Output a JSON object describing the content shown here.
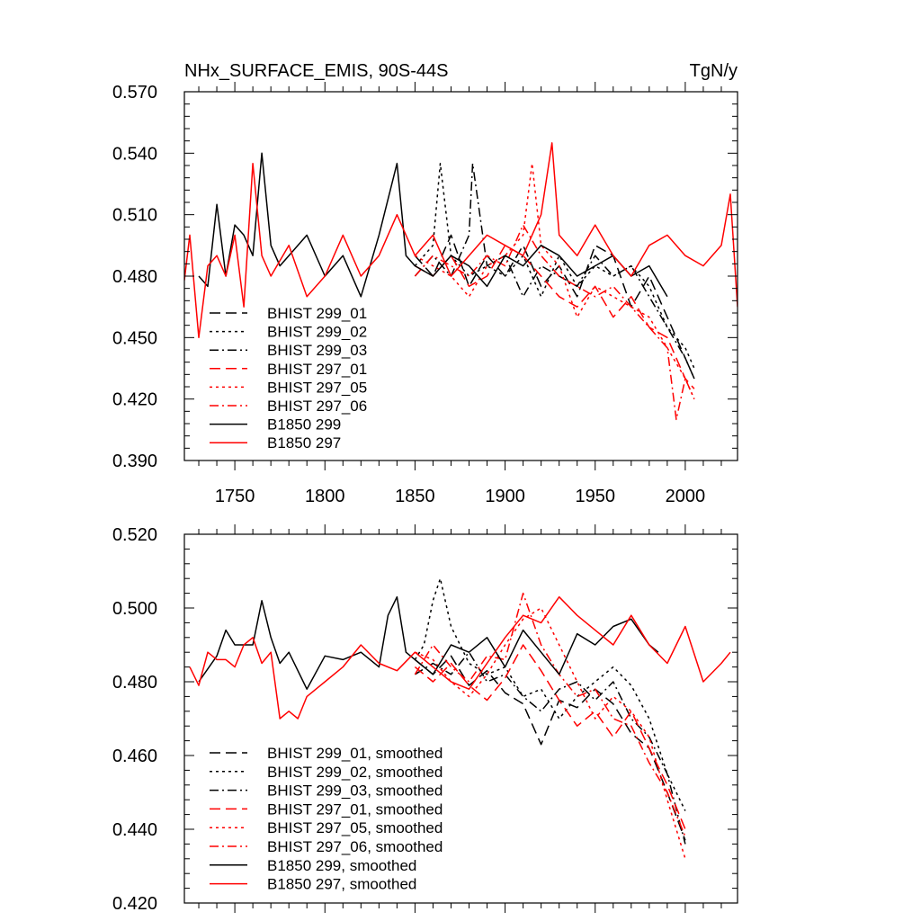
{
  "chart_data": [
    {
      "type": "line",
      "title": "NHx_SURFACE_EMIS, 90S-44S",
      "units": "TgN/y",
      "xlim": [
        1722,
        2029
      ],
      "ylim": [
        0.39,
        0.57
      ],
      "yticks": [
        "0.390",
        "0.420",
        "0.450",
        "0.480",
        "0.510",
        "0.540",
        "0.570"
      ],
      "xticks": [
        "1750",
        "1800",
        "1850",
        "1900",
        "1950",
        "2000"
      ],
      "grid": false,
      "legend_position": "bottom-left",
      "series": [
        {
          "name": "BHIST 299_01",
          "color": "#000000",
          "dash": "dashed",
          "x": [
            1850,
            1860,
            1870,
            1880,
            1890,
            1900,
            1910,
            1920,
            1930,
            1940,
            1950,
            1960,
            1970,
            1980,
            1990,
            2000,
            2005
          ],
          "y": [
            0.49,
            0.48,
            0.5,
            0.475,
            0.49,
            0.48,
            0.495,
            0.475,
            0.485,
            0.47,
            0.495,
            0.49,
            0.465,
            0.48,
            0.46,
            0.44,
            0.43
          ]
        },
        {
          "name": "BHIST 299_02",
          "color": "#000000",
          "dash": "dotted",
          "x": [
            1850,
            1860,
            1864,
            1870,
            1880,
            1890,
            1900,
            1910,
            1920,
            1930,
            1940,
            1950,
            1960,
            1970,
            1980,
            1990,
            2000,
            2005
          ],
          "y": [
            0.485,
            0.495,
            0.535,
            0.49,
            0.48,
            0.485,
            0.48,
            0.49,
            0.47,
            0.49,
            0.475,
            0.485,
            0.48,
            0.485,
            0.475,
            0.455,
            0.445,
            0.435
          ]
        },
        {
          "name": "BHIST 299_03",
          "color": "#000000",
          "dash": "dashdot",
          "x": [
            1850,
            1860,
            1870,
            1880,
            1882,
            1890,
            1900,
            1910,
            1920,
            1930,
            1940,
            1950,
            1960,
            1970,
            1980,
            1990,
            2000,
            2005
          ],
          "y": [
            0.48,
            0.49,
            0.48,
            0.5,
            0.535,
            0.485,
            0.49,
            0.47,
            0.485,
            0.48,
            0.475,
            0.49,
            0.48,
            0.485,
            0.47,
            0.455,
            0.44,
            0.43
          ]
        },
        {
          "name": "BHIST 297_01",
          "color": "#ff0000",
          "dash": "dashed",
          "x": [
            1850,
            1860,
            1870,
            1880,
            1890,
            1900,
            1910,
            1920,
            1930,
            1940,
            1950,
            1960,
            1970,
            1980,
            1990,
            2000,
            2005
          ],
          "y": [
            0.485,
            0.48,
            0.49,
            0.475,
            0.48,
            0.495,
            0.49,
            0.48,
            0.47,
            0.465,
            0.475,
            0.46,
            0.47,
            0.455,
            0.45,
            0.43,
            0.425
          ]
        },
        {
          "name": "BHIST 297_05",
          "color": "#ff0000",
          "dash": "dotted",
          "x": [
            1850,
            1860,
            1870,
            1880,
            1890,
            1900,
            1910,
            1915,
            1920,
            1930,
            1940,
            1950,
            1960,
            1970,
            1980,
            1990,
            2000,
            2005
          ],
          "y": [
            0.49,
            0.485,
            0.48,
            0.47,
            0.485,
            0.49,
            0.5,
            0.535,
            0.495,
            0.485,
            0.46,
            0.475,
            0.47,
            0.465,
            0.46,
            0.445,
            0.43,
            0.42
          ]
        },
        {
          "name": "BHIST 297_06",
          "color": "#ff0000",
          "dash": "dashdot",
          "x": [
            1850,
            1860,
            1870,
            1880,
            1890,
            1900,
            1910,
            1920,
            1930,
            1940,
            1950,
            1960,
            1970,
            1980,
            1990,
            1995,
            2000,
            2005
          ],
          "y": [
            0.48,
            0.49,
            0.485,
            0.48,
            0.49,
            0.485,
            0.505,
            0.49,
            0.48,
            0.475,
            0.47,
            0.475,
            0.465,
            0.455,
            0.445,
            0.41,
            0.43,
            0.42
          ]
        },
        {
          "name": "B1850 299",
          "color": "#000000",
          "dash": "solid",
          "x": [
            1730,
            1735,
            1740,
            1745,
            1750,
            1755,
            1760,
            1765,
            1770,
            1775,
            1780,
            1790,
            1800,
            1810,
            1820,
            1830,
            1840,
            1845,
            1850,
            1860,
            1870,
            1880,
            1890,
            1900,
            1910,
            1920,
            1930,
            1940,
            1950,
            1960,
            1970,
            1980,
            1990
          ],
          "y": [
            0.48,
            0.475,
            0.515,
            0.48,
            0.505,
            0.5,
            0.49,
            0.54,
            0.495,
            0.485,
            0.49,
            0.5,
            0.48,
            0.49,
            0.47,
            0.5,
            0.535,
            0.49,
            0.485,
            0.48,
            0.49,
            0.485,
            0.475,
            0.49,
            0.485,
            0.495,
            0.49,
            0.48,
            0.485,
            0.49,
            0.48,
            0.485,
            0.47
          ]
        },
        {
          "name": "B1850 297",
          "color": "#ff0000",
          "dash": "solid",
          "x": [
            1722,
            1725,
            1730,
            1735,
            1740,
            1745,
            1750,
            1755,
            1760,
            1765,
            1770,
            1780,
            1790,
            1800,
            1810,
            1820,
            1830,
            1840,
            1850,
            1860,
            1870,
            1880,
            1890,
            1900,
            1910,
            1920,
            1926,
            1930,
            1940,
            1950,
            1960,
            1970,
            1980,
            1990,
            2000,
            2010,
            2020,
            2025,
            2029
          ],
          "y": [
            0.478,
            0.5,
            0.45,
            0.485,
            0.49,
            0.48,
            0.5,
            0.465,
            0.535,
            0.49,
            0.48,
            0.495,
            0.47,
            0.48,
            0.5,
            0.48,
            0.49,
            0.51,
            0.49,
            0.5,
            0.48,
            0.49,
            0.5,
            0.495,
            0.49,
            0.51,
            0.545,
            0.5,
            0.49,
            0.505,
            0.49,
            0.48,
            0.495,
            0.5,
            0.49,
            0.485,
            0.495,
            0.52,
            0.465
          ]
        }
      ]
    },
    {
      "type": "line",
      "title": "",
      "xlim": [
        1722,
        2029
      ],
      "ylim": [
        0.42,
        0.52
      ],
      "yticks": [
        "0.420",
        "0.440",
        "0.460",
        "0.480",
        "0.500",
        "0.520"
      ],
      "xticks": [],
      "grid": false,
      "legend_position": "bottom-left",
      "series": [
        {
          "name": "BHIST 299_01, smoothed",
          "color": "#000000",
          "dash": "dashed",
          "x": [
            1850,
            1860,
            1870,
            1880,
            1890,
            1900,
            1910,
            1920,
            1930,
            1940,
            1950,
            1960,
            1970,
            1980,
            1990,
            2000
          ],
          "y": [
            0.486,
            0.482,
            0.487,
            0.479,
            0.483,
            0.477,
            0.474,
            0.463,
            0.475,
            0.473,
            0.478,
            0.474,
            0.466,
            0.462,
            0.45,
            0.437
          ]
        },
        {
          "name": "BHIST 299_02, smoothed",
          "color": "#000000",
          "dash": "dotted",
          "x": [
            1850,
            1855,
            1860,
            1864,
            1870,
            1880,
            1890,
            1900,
            1910,
            1920,
            1930,
            1940,
            1950,
            1960,
            1970,
            1980,
            1990,
            2000
          ],
          "y": [
            0.486,
            0.49,
            0.502,
            0.508,
            0.495,
            0.485,
            0.482,
            0.484,
            0.476,
            0.478,
            0.47,
            0.476,
            0.48,
            0.484,
            0.479,
            0.47,
            0.455,
            0.445
          ]
        },
        {
          "name": "BHIST 299_03, smoothed",
          "color": "#000000",
          "dash": "dashdot",
          "x": [
            1850,
            1860,
            1870,
            1880,
            1890,
            1900,
            1910,
            1920,
            1930,
            1940,
            1950,
            1960,
            1970,
            1980,
            1990,
            2000
          ],
          "y": [
            0.482,
            0.485,
            0.482,
            0.488,
            0.48,
            0.482,
            0.476,
            0.472,
            0.478,
            0.48,
            0.475,
            0.48,
            0.47,
            0.465,
            0.455,
            0.436
          ]
        },
        {
          "name": "BHIST 297_01, smoothed",
          "color": "#ff0000",
          "dash": "dashed",
          "x": [
            1850,
            1860,
            1870,
            1880,
            1890,
            1900,
            1910,
            1920,
            1930,
            1940,
            1950,
            1960,
            1970,
            1980,
            1990,
            2000
          ],
          "y": [
            0.484,
            0.48,
            0.485,
            0.479,
            0.475,
            0.481,
            0.49,
            0.483,
            0.475,
            0.468,
            0.472,
            0.465,
            0.472,
            0.462,
            0.452,
            0.44
          ]
        },
        {
          "name": "BHIST 297_05, smoothed",
          "color": "#ff0000",
          "dash": "dotted",
          "x": [
            1850,
            1860,
            1870,
            1880,
            1890,
            1900,
            1910,
            1920,
            1930,
            1940,
            1950,
            1960,
            1970,
            1980,
            1990,
            2000
          ],
          "y": [
            0.488,
            0.486,
            0.48,
            0.476,
            0.482,
            0.49,
            0.497,
            0.5,
            0.49,
            0.48,
            0.47,
            0.476,
            0.472,
            0.465,
            0.448,
            0.432
          ]
        },
        {
          "name": "BHIST 297_06, smoothed",
          "color": "#ff0000",
          "dash": "dashdot",
          "x": [
            1850,
            1860,
            1870,
            1880,
            1890,
            1900,
            1910,
            1920,
            1930,
            1940,
            1950,
            1960,
            1970,
            1980,
            1990,
            2000
          ],
          "y": [
            0.482,
            0.49,
            0.484,
            0.48,
            0.487,
            0.486,
            0.504,
            0.49,
            0.482,
            0.476,
            0.478,
            0.47,
            0.468,
            0.458,
            0.45,
            0.438
          ]
        },
        {
          "name": "B1850 299, smoothed",
          "color": "#000000",
          "dash": "solid",
          "x": [
            1730,
            1740,
            1745,
            1750,
            1755,
            1760,
            1765,
            1770,
            1775,
            1780,
            1790,
            1800,
            1810,
            1820,
            1830,
            1835,
            1840,
            1845,
            1850,
            1860,
            1870,
            1880,
            1890,
            1900,
            1910,
            1920,
            1930,
            1940,
            1950,
            1960,
            1970,
            1980,
            1985
          ],
          "y": [
            0.48,
            0.487,
            0.494,
            0.49,
            0.49,
            0.49,
            0.502,
            0.492,
            0.485,
            0.488,
            0.478,
            0.487,
            0.486,
            0.488,
            0.484,
            0.498,
            0.503,
            0.488,
            0.486,
            0.482,
            0.49,
            0.488,
            0.492,
            0.484,
            0.494,
            0.488,
            0.482,
            0.493,
            0.49,
            0.495,
            0.497,
            0.49,
            0.488
          ]
        },
        {
          "name": "B1850 297, smoothed",
          "color": "#ff0000",
          "dash": "solid",
          "x": [
            1725,
            1730,
            1735,
            1740,
            1745,
            1750,
            1755,
            1760,
            1765,
            1770,
            1775,
            1780,
            1785,
            1790,
            1800,
            1810,
            1820,
            1830,
            1840,
            1850,
            1860,
            1870,
            1880,
            1890,
            1900,
            1910,
            1920,
            1930,
            1940,
            1950,
            1960,
            1970,
            1980,
            1990,
            2000,
            2010,
            2020,
            2025
          ],
          "y": [
            0.484,
            0.479,
            0.488,
            0.486,
            0.486,
            0.484,
            0.49,
            0.492,
            0.485,
            0.488,
            0.47,
            0.472,
            0.47,
            0.476,
            0.48,
            0.484,
            0.49,
            0.485,
            0.483,
            0.488,
            0.484,
            0.48,
            0.478,
            0.485,
            0.492,
            0.498,
            0.496,
            0.503,
            0.498,
            0.494,
            0.49,
            0.498,
            0.49,
            0.485,
            0.495,
            0.48,
            0.485,
            0.488
          ]
        }
      ]
    }
  ]
}
